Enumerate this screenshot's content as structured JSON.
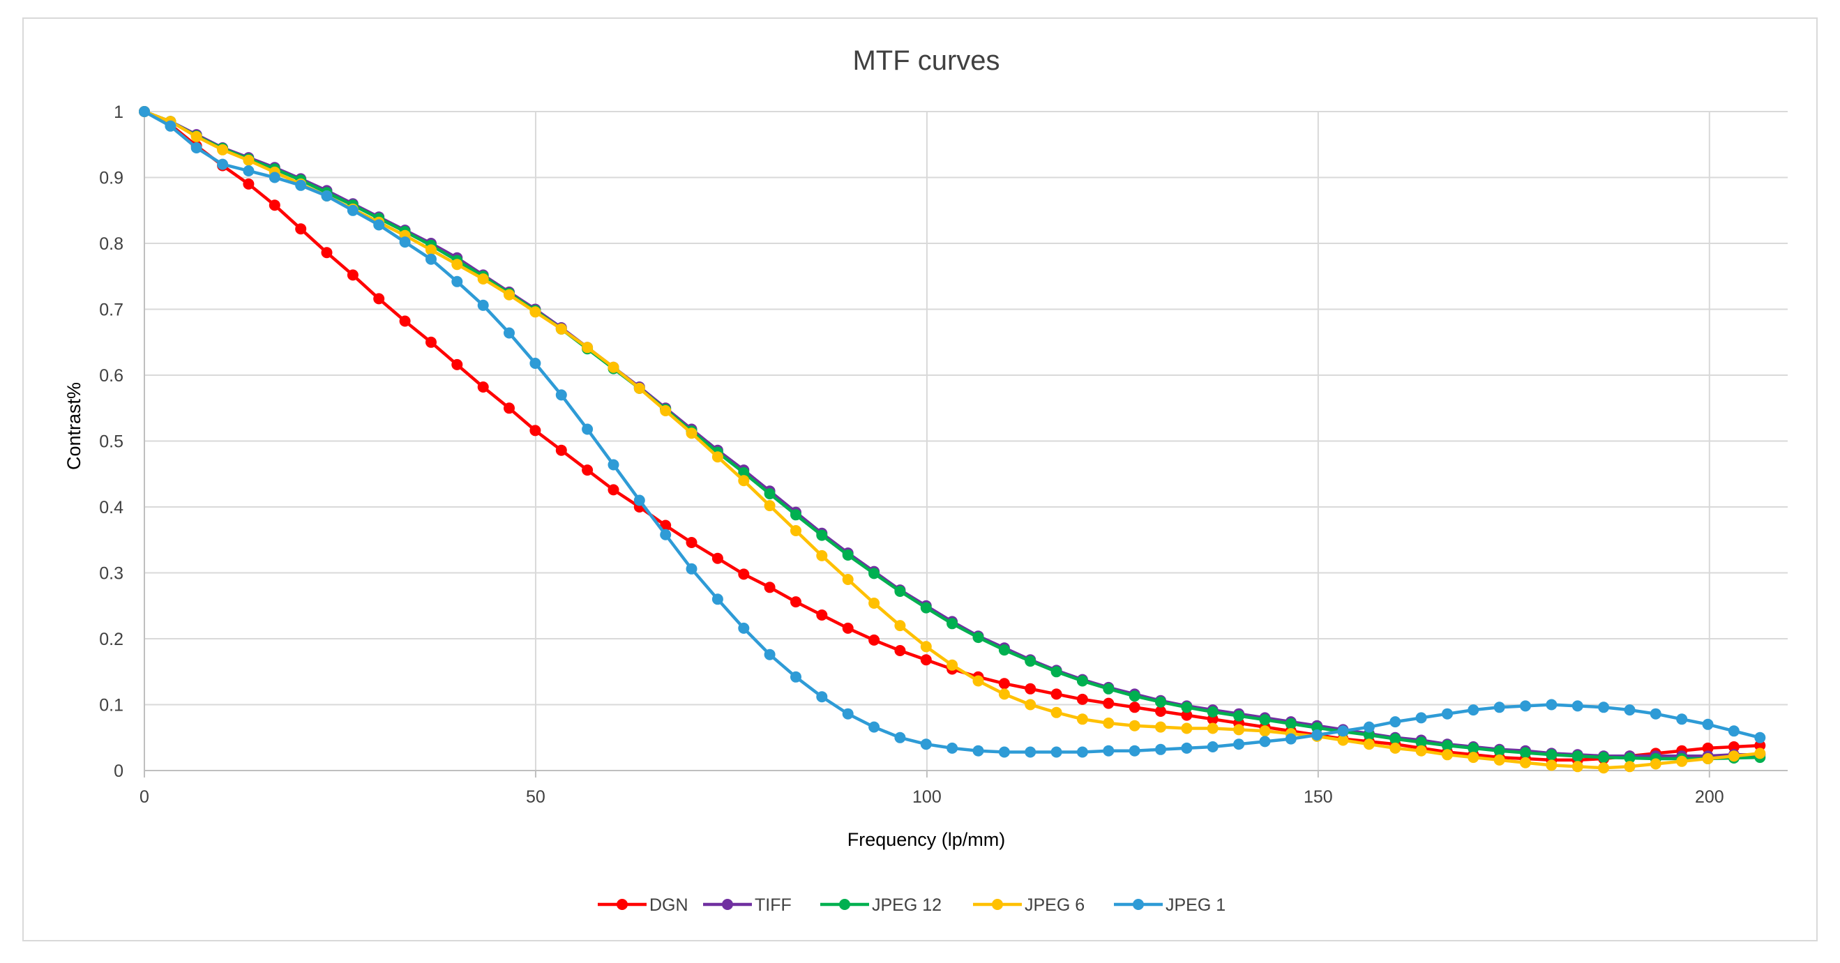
{
  "chart_data": {
    "type": "line",
    "title": "MTF curves",
    "xlabel": "Frequency (lp/mm)",
    "ylabel": "Contrast%",
    "xlim": [
      0,
      210
    ],
    "ylim": [
      0,
      1
    ],
    "xticks": [
      0,
      50,
      100,
      150,
      200
    ],
    "yticks": [
      0,
      0.1,
      0.2,
      0.3,
      0.4,
      0.5,
      0.6,
      0.7,
      0.8,
      0.9,
      1
    ],
    "xtick_labels": [
      "0",
      "50",
      "100",
      "150",
      "200"
    ],
    "ytick_labels": [
      "0",
      "0.1",
      "0.2",
      "0.3",
      "0.4",
      "0.5",
      "0.6",
      "0.7",
      "0.8",
      "0.9",
      "1"
    ],
    "grid": true,
    "legend_position": "bottom",
    "x": [
      0,
      3.33,
      6.66,
      9.99,
      13.32,
      16.65,
      19.98,
      23.31,
      26.64,
      29.97,
      33.3,
      36.63,
      39.96,
      43.29,
      46.62,
      49.95,
      53.28,
      56.61,
      59.94,
      63.27,
      66.6,
      69.93,
      73.26,
      76.59,
      79.92,
      83.25,
      86.58,
      89.91,
      93.24,
      96.57,
      99.9,
      103.23,
      106.56,
      109.89,
      113.22,
      116.55,
      119.88,
      123.21,
      126.54,
      129.87,
      133.2,
      136.53,
      139.86,
      143.19,
      146.52,
      149.85,
      153.18,
      156.51,
      159.84,
      163.17,
      166.5,
      169.83,
      173.16,
      176.49,
      179.82,
      183.15,
      186.48,
      189.81,
      193.14,
      196.47,
      199.8,
      203.13,
      206.46
    ],
    "series": [
      {
        "name": "DGN",
        "color": "#ff0000",
        "values": [
          1.0,
          0.98,
          0.948,
          0.918,
          0.89,
          0.858,
          0.822,
          0.786,
          0.752,
          0.716,
          0.682,
          0.65,
          0.616,
          0.582,
          0.55,
          0.516,
          0.486,
          0.456,
          0.426,
          0.4,
          0.372,
          0.346,
          0.322,
          0.298,
          0.278,
          0.256,
          0.236,
          0.216,
          0.198,
          0.182,
          0.168,
          0.154,
          0.142,
          0.132,
          0.124,
          0.116,
          0.108,
          0.102,
          0.096,
          0.09,
          0.084,
          0.078,
          0.072,
          0.066,
          0.06,
          0.054,
          0.048,
          0.044,
          0.04,
          0.034,
          0.028,
          0.024,
          0.02,
          0.018,
          0.016,
          0.016,
          0.018,
          0.022,
          0.026,
          0.03,
          0.034,
          0.036,
          0.038
        ]
      },
      {
        "name": "TIFF",
        "color": "#7030a0",
        "values": [
          1.0,
          0.985,
          0.965,
          0.945,
          0.93,
          0.915,
          0.898,
          0.88,
          0.86,
          0.84,
          0.82,
          0.8,
          0.778,
          0.752,
          0.726,
          0.7,
          0.672,
          0.642,
          0.612,
          0.582,
          0.55,
          0.518,
          0.486,
          0.456,
          0.424,
          0.392,
          0.36,
          0.33,
          0.302,
          0.274,
          0.25,
          0.226,
          0.204,
          0.186,
          0.168,
          0.152,
          0.138,
          0.126,
          0.116,
          0.106,
          0.098,
          0.092,
          0.086,
          0.08,
          0.074,
          0.068,
          0.062,
          0.056,
          0.05,
          0.046,
          0.04,
          0.036,
          0.032,
          0.03,
          0.026,
          0.024,
          0.022,
          0.022,
          0.022,
          0.022,
          0.022,
          0.024,
          0.024
        ]
      },
      {
        "name": "JPEG 12",
        "color": "#00b050",
        "values": [
          1.0,
          0.985,
          0.963,
          0.944,
          0.928,
          0.913,
          0.896,
          0.877,
          0.858,
          0.838,
          0.818,
          0.797,
          0.774,
          0.75,
          0.724,
          0.698,
          0.67,
          0.64,
          0.61,
          0.58,
          0.548,
          0.515,
          0.483,
          0.452,
          0.42,
          0.388,
          0.357,
          0.327,
          0.299,
          0.272,
          0.247,
          0.223,
          0.202,
          0.183,
          0.166,
          0.15,
          0.136,
          0.124,
          0.113,
          0.104,
          0.096,
          0.089,
          0.083,
          0.077,
          0.071,
          0.065,
          0.059,
          0.054,
          0.048,
          0.043,
          0.038,
          0.034,
          0.03,
          0.027,
          0.024,
          0.022,
          0.02,
          0.019,
          0.018,
          0.018,
          0.018,
          0.019,
          0.02
        ]
      },
      {
        "name": "JPEG 6",
        "color": "#ffc000",
        "values": [
          1.0,
          0.985,
          0.962,
          0.942,
          0.926,
          0.908,
          0.89,
          0.872,
          0.852,
          0.832,
          0.812,
          0.79,
          0.768,
          0.746,
          0.722,
          0.696,
          0.67,
          0.642,
          0.612,
          0.58,
          0.546,
          0.512,
          0.476,
          0.44,
          0.402,
          0.364,
          0.326,
          0.29,
          0.254,
          0.22,
          0.188,
          0.16,
          0.136,
          0.116,
          0.1,
          0.088,
          0.078,
          0.072,
          0.068,
          0.066,
          0.064,
          0.064,
          0.062,
          0.06,
          0.056,
          0.052,
          0.046,
          0.04,
          0.034,
          0.03,
          0.024,
          0.02,
          0.016,
          0.012,
          0.008,
          0.006,
          0.004,
          0.006,
          0.01,
          0.014,
          0.018,
          0.022,
          0.026
        ]
      },
      {
        "name": "JPEG 1",
        "color": "#2e9bd6",
        "values": [
          1.0,
          0.978,
          0.945,
          0.92,
          0.91,
          0.9,
          0.888,
          0.872,
          0.85,
          0.828,
          0.802,
          0.776,
          0.742,
          0.706,
          0.664,
          0.618,
          0.57,
          0.518,
          0.464,
          0.41,
          0.358,
          0.306,
          0.26,
          0.216,
          0.176,
          0.142,
          0.112,
          0.086,
          0.066,
          0.05,
          0.04,
          0.034,
          0.03,
          0.028,
          0.028,
          0.028,
          0.028,
          0.03,
          0.03,
          0.032,
          0.034,
          0.036,
          0.04,
          0.044,
          0.048,
          0.054,
          0.06,
          0.066,
          0.074,
          0.08,
          0.086,
          0.092,
          0.096,
          0.098,
          0.1,
          0.098,
          0.096,
          0.092,
          0.086,
          0.078,
          0.07,
          0.06,
          0.05
        ]
      }
    ]
  }
}
